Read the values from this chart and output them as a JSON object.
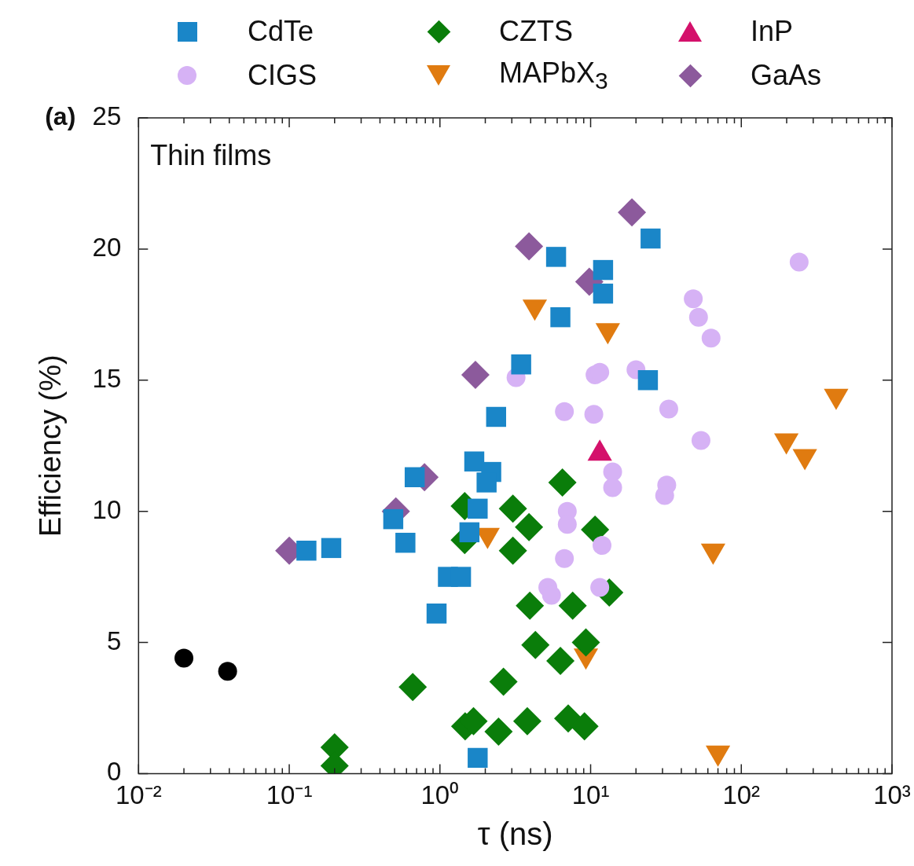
{
  "chart_data": {
    "type": "scatter",
    "title": "(a)",
    "xlabel": "τ (ns)",
    "ylabel": "Efficiency (%)",
    "annotations": [
      "Thin films"
    ],
    "log": "x",
    "grid": false,
    "legend": "top",
    "xlim": [
      0.01,
      1000
    ],
    "ylim": [
      0,
      25
    ],
    "xticks": [
      {
        "value": 0.01,
        "label": "10⁻²"
      },
      {
        "value": 0.02,
        "label": null
      },
      {
        "value": 0.03,
        "label": null
      },
      {
        "value": 0.04,
        "label": null
      },
      {
        "value": 0.05,
        "label": null
      },
      {
        "value": 0.06,
        "label": null
      },
      {
        "value": 0.07,
        "label": null
      },
      {
        "value": 0.08,
        "label": null
      },
      {
        "value": 0.09,
        "label": null
      },
      {
        "value": 0.1,
        "label": "10⁻¹"
      },
      {
        "value": 0.2,
        "label": null
      },
      {
        "value": 0.3,
        "label": null
      },
      {
        "value": 0.4,
        "label": null
      },
      {
        "value": 0.5,
        "label": null
      },
      {
        "value": 0.6,
        "label": null
      },
      {
        "value": 0.7,
        "label": null
      },
      {
        "value": 0.8,
        "label": null
      },
      {
        "value": 0.9,
        "label": null
      },
      {
        "value": 1,
        "label": "10⁰"
      },
      {
        "value": 2,
        "label": null
      },
      {
        "value": 3,
        "label": null
      },
      {
        "value": 4,
        "label": null
      },
      {
        "value": 5,
        "label": null
      },
      {
        "value": 6,
        "label": null
      },
      {
        "value": 7,
        "label": null
      },
      {
        "value": 8,
        "label": null
      },
      {
        "value": 9,
        "label": null
      },
      {
        "value": 10,
        "label": "10¹"
      },
      {
        "value": 20,
        "label": null
      },
      {
        "value": 30,
        "label": null
      },
      {
        "value": 40,
        "label": null
      },
      {
        "value": 50,
        "label": null
      },
      {
        "value": 60,
        "label": null
      },
      {
        "value": 70,
        "label": null
      },
      {
        "value": 80,
        "label": null
      },
      {
        "value": 90,
        "label": null
      },
      {
        "value": 100,
        "label": "10²"
      },
      {
        "value": 200,
        "label": null
      },
      {
        "value": 300,
        "label": null
      },
      {
        "value": 400,
        "label": null
      },
      {
        "value": 500,
        "label": null
      },
      {
        "value": 600,
        "label": null
      },
      {
        "value": 700,
        "label": null
      },
      {
        "value": 800,
        "label": null
      },
      {
        "value": 900,
        "label": null
      },
      {
        "value": 1000,
        "label": "10³"
      }
    ],
    "yticks": [
      0,
      5,
      10,
      15,
      20,
      25
    ],
    "series": [
      {
        "name": "CdTe",
        "color": "#1a86c8",
        "marker": "square",
        "x": [
          0.13,
          0.19,
          0.49,
          0.59,
          0.68,
          0.95,
          1.13,
          1.38,
          1.57,
          1.78,
          1.69,
          2.19,
          2.04,
          2.36,
          3.46,
          1.78,
          5.9,
          6.3,
          12.1,
          12.1,
          25,
          24
        ],
        "values": [
          8.5,
          8.6,
          9.7,
          8.8,
          11.3,
          6.1,
          7.5,
          7.5,
          9.2,
          10.1,
          11.9,
          11.5,
          11.1,
          13.6,
          15.6,
          0.6,
          19.7,
          17.4,
          19.2,
          18.3,
          20.4,
          15.0
        ]
      },
      {
        "name": "CIGS",
        "color": "#d6b2f5",
        "marker": "circle",
        "x": [
          3.2,
          10.7,
          11.5,
          20,
          48,
          52,
          63,
          242,
          33,
          54,
          32,
          31,
          6.7,
          10.5,
          14,
          14,
          7.0,
          7.0,
          6.7,
          11.9,
          5.2,
          5.5,
          11.5
        ],
        "values": [
          15.1,
          15.2,
          15.3,
          15.4,
          18.1,
          17.4,
          16.6,
          19.5,
          13.9,
          12.7,
          11.0,
          10.6,
          13.8,
          13.7,
          11.5,
          10.9,
          10.0,
          9.5,
          8.2,
          8.7,
          7.1,
          6.8,
          7.1
        ]
      },
      {
        "name": "CZTS",
        "color": "#0a7d0a",
        "marker": "diamond",
        "x": [
          0.2,
          0.2,
          0.66,
          1.46,
          1.46,
          3.05,
          3.9,
          3.05,
          3.95,
          4.3,
          2.64,
          1.47,
          1.67,
          2.45,
          3.8,
          6.5,
          10.7,
          13.3,
          7.6,
          6.3,
          9.3,
          7.1,
          9.1
        ],
        "values": [
          1.0,
          0.3,
          3.3,
          10.2,
          8.9,
          10.1,
          9.4,
          8.5,
          6.4,
          4.9,
          3.5,
          1.8,
          2.0,
          1.6,
          2.0,
          11.1,
          9.3,
          6.9,
          6.4,
          4.3,
          5.0,
          2.1,
          1.8
        ]
      },
      {
        "name": "MAPbX$_{3}$",
        "color": "#e07b10",
        "marker": "triangle_down",
        "x": [
          2.07,
          4.26,
          13,
          9.3,
          65,
          70,
          199,
          264,
          426
        ],
        "values": [
          9.1,
          17.8,
          16.9,
          4.5,
          8.5,
          0.8,
          12.7,
          12.1,
          14.4
        ]
      },
      {
        "name": "InP",
        "color": "#d4116b",
        "marker": "triangle",
        "x": [
          11.5
        ],
        "values": [
          12.2
        ]
      },
      {
        "name": "GaAs",
        "color": "#8c5a9c",
        "marker": "diamond",
        "x": [
          0.1,
          0.51,
          0.79,
          1.72,
          3.9,
          9.8
        ],
        "values": [
          8.5,
          10.0,
          11.3,
          15.2,
          20.1,
          18.75
        ]
      },
      {
        "color": "#8c5a9c",
        "marker": "diamond",
        "x": [
          18.8
        ],
        "values": [
          21.4
        ]
      },
      {
        "color": "#000000",
        "marker": "circle",
        "x": [
          0.02,
          0.039
        ],
        "values": [
          4.4,
          3.9
        ]
      }
    ]
  }
}
